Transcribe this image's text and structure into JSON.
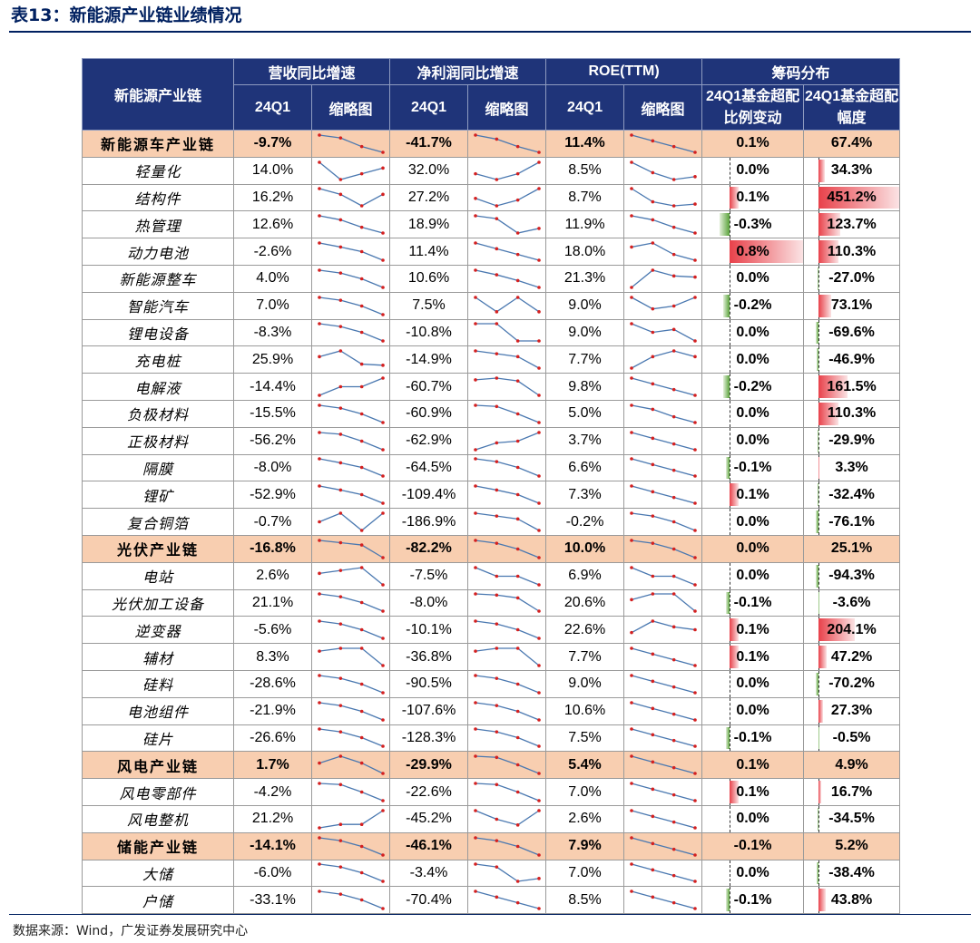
{
  "title": "表13：新能源产业链业绩情况",
  "source": "数据来源：Wind，广发证券发展研究中心",
  "colors": {
    "header_bg": "#1f3479",
    "group_bg": "#f8ceb0",
    "pos_bar": "#e8414a",
    "neg_bar": "#5aa23a",
    "spark_line": "#4a78b0",
    "spark_dot": "#d42020"
  },
  "header": {
    "col0": "新能源产业链",
    "group1": "营收同比增速",
    "group2": "净利润同比增速",
    "group3": "ROE(TTM)",
    "group4": "筹码分布",
    "q": "24Q1",
    "thumb": "缩略图",
    "chip1": "24Q1基金超配比例变动",
    "chip2": "24Q1基金超配幅度"
  },
  "rows": [
    {
      "name": "新能源车产业链",
      "group": true,
      "rev": "-9.7%",
      "np": "-41.7%",
      "roe": "11.4%",
      "chg": "0.1%",
      "over": "67.4%",
      "chgv": 0.1,
      "overv": 67.4,
      "s1": [
        3,
        2.5,
        1,
        0
      ],
      "s2": [
        3,
        2.3,
        1,
        0
      ],
      "s3": [
        3,
        2,
        1,
        0
      ]
    },
    {
      "name": "轻量化",
      "rev": "14.0%",
      "np": "32.0%",
      "roe": "8.5%",
      "chg": "0.0%",
      "over": "34.3%",
      "chgv": 0.0,
      "overv": 34.3,
      "s1": [
        3,
        0,
        1,
        2
      ],
      "s2": [
        1,
        0,
        1,
        3
      ],
      "s3": [
        3,
        1.2,
        0,
        0.5
      ]
    },
    {
      "name": "结构件",
      "rev": "16.2%",
      "np": "27.2%",
      "roe": "8.7%",
      "chg": "0.1%",
      "over": "451.2%",
      "chgv": 0.1,
      "overv": 451.2,
      "s1": [
        3,
        2,
        0,
        2
      ],
      "s2": [
        1.3,
        0,
        1,
        3
      ],
      "s3": [
        3,
        0.7,
        0,
        0.3
      ]
    },
    {
      "name": "热管理",
      "rev": "12.6%",
      "np": "18.9%",
      "roe": "11.9%",
      "chg": "-0.3%",
      "over": "123.7%",
      "chgv": -0.3,
      "overv": 123.7,
      "s1": [
        3,
        2.3,
        1,
        0
      ],
      "s2": [
        3,
        2.5,
        0,
        0.8
      ],
      "s3": [
        3,
        2.3,
        1,
        0
      ]
    },
    {
      "name": "动力电池",
      "rev": "-2.6%",
      "np": "11.4%",
      "roe": "18.0%",
      "chg": "0.8%",
      "over": "110.3%",
      "chgv": 0.8,
      "overv": 110.3,
      "s1": [
        3,
        2.3,
        1.5,
        0
      ],
      "s2": [
        3,
        2,
        1,
        0
      ],
      "s3": [
        2.3,
        3,
        1,
        0
      ]
    },
    {
      "name": "新能源整车",
      "rev": "4.0%",
      "np": "10.6%",
      "roe": "21.3%",
      "chg": "0.0%",
      "over": "-27.0%",
      "chgv": 0.0,
      "overv": -27.0,
      "s1": [
        3,
        2.5,
        1.5,
        0
      ],
      "s2": [
        3,
        2.2,
        1.2,
        0
      ],
      "s3": [
        0,
        3,
        2,
        1.8
      ]
    },
    {
      "name": "智能汽车",
      "rev": "7.0%",
      "np": "7.5%",
      "roe": "9.0%",
      "chg": "-0.2%",
      "over": "73.1%",
      "chgv": -0.2,
      "overv": 73.1,
      "s1": [
        3,
        2.5,
        1.5,
        0
      ],
      "s2": [
        3,
        0.5,
        3,
        0.5
      ],
      "s3": [
        3,
        1,
        1.5,
        3
      ]
    },
    {
      "name": "锂电设备",
      "rev": "-8.3%",
      "np": "-10.8%",
      "roe": "9.0%",
      "chg": "0.0%",
      "over": "-69.6%",
      "chgv": 0.0,
      "overv": -69.6,
      "s1": [
        3,
        2.5,
        1.5,
        0
      ],
      "s2": [
        3,
        3,
        0,
        0
      ],
      "s3": [
        3,
        1.5,
        2,
        0
      ]
    },
    {
      "name": "充电桩",
      "rev": "25.9%",
      "np": "-14.9%",
      "roe": "7.7%",
      "chg": "0.0%",
      "over": "-46.9%",
      "chgv": 0.0,
      "overv": -46.9,
      "s1": [
        2,
        3,
        0.7,
        0.5
      ],
      "s2": [
        3,
        2.5,
        2,
        0
      ],
      "s3": [
        0,
        2,
        3,
        2
      ]
    },
    {
      "name": "电解液",
      "rev": "-14.4%",
      "np": "-60.7%",
      "roe": "9.8%",
      "chg": "-0.2%",
      "over": "161.5%",
      "chgv": -0.2,
      "overv": 161.5,
      "s1": [
        0,
        1.5,
        1.5,
        3
      ],
      "s2": [
        2.7,
        3,
        2.5,
        0
      ],
      "s3": [
        3,
        2,
        1,
        0
      ]
    },
    {
      "name": "负极材料",
      "rev": "-15.5%",
      "np": "-60.9%",
      "roe": "5.0%",
      "chg": "0.0%",
      "over": "110.3%",
      "chgv": 0.0,
      "overv": 110.3,
      "s1": [
        3,
        2.5,
        1.5,
        0
      ],
      "s2": [
        3,
        2.8,
        1.5,
        0
      ],
      "s3": [
        3,
        2.3,
        1,
        0
      ]
    },
    {
      "name": "正极材料",
      "rev": "-56.2%",
      "np": "-62.9%",
      "roe": "3.7%",
      "chg": "0.0%",
      "over": "-29.9%",
      "chgv": 0.0,
      "overv": -29.9,
      "s1": [
        3,
        2.7,
        1.5,
        0
      ],
      "s2": [
        0,
        1.2,
        1.5,
        3
      ],
      "s3": [
        3,
        2,
        1,
        0
      ]
    },
    {
      "name": "隔膜",
      "rev": "-8.0%",
      "np": "-64.5%",
      "roe": "6.6%",
      "chg": "-0.1%",
      "over": "3.3%",
      "chgv": -0.1,
      "overv": 3.3,
      "s1": [
        3,
        2.3,
        1.5,
        0
      ],
      "s2": [
        3,
        2.5,
        1.5,
        0
      ],
      "s3": [
        3,
        2,
        1,
        0
      ]
    },
    {
      "name": "锂矿",
      "rev": "-52.9%",
      "np": "-109.4%",
      "roe": "7.3%",
      "chg": "0.1%",
      "over": "-32.4%",
      "chgv": 0.1,
      "overv": -32.4,
      "s1": [
        3,
        2.3,
        1.5,
        0
      ],
      "s2": [
        3,
        2.3,
        1.5,
        0
      ],
      "s3": [
        3,
        2,
        1,
        0
      ]
    },
    {
      "name": "复合铜箔",
      "rev": "-0.7%",
      "np": "-186.9%",
      "roe": "-0.2%",
      "chg": "0.0%",
      "over": "-76.1%",
      "chgv": 0.0,
      "overv": -76.1,
      "s1": [
        1.5,
        3,
        0,
        3
      ],
      "s2": [
        3,
        2.5,
        2,
        0
      ],
      "s3": [
        3,
        2.5,
        1.5,
        0
      ]
    },
    {
      "name": "光伏产业链",
      "group": true,
      "rev": "-16.8%",
      "np": "-82.2%",
      "roe": "10.0%",
      "chg": "0.0%",
      "over": "25.1%",
      "chgv": 0.0,
      "overv": 25.1,
      "s1": [
        3,
        2.6,
        2.2,
        0
      ],
      "s2": [
        3,
        2.5,
        1.5,
        0
      ],
      "s3": [
        3,
        2.5,
        1.5,
        0
      ]
    },
    {
      "name": "电站",
      "rev": "2.6%",
      "np": "-7.5%",
      "roe": "6.9%",
      "chg": "0.0%",
      "over": "-94.3%",
      "chgv": 0.0,
      "overv": -94.3,
      "s1": [
        2,
        2.5,
        3,
        0
      ],
      "s2": [
        3,
        1.5,
        1.5,
        0
      ],
      "s3": [
        3,
        1.5,
        1.5,
        0
      ]
    },
    {
      "name": "光伏加工设备",
      "rev": "21.1%",
      "np": "-8.0%",
      "roe": "20.6%",
      "chg": "-0.1%",
      "over": "-3.6%",
      "chgv": -0.1,
      "overv": -3.6,
      "s1": [
        3,
        2.5,
        1.5,
        0
      ],
      "s2": [
        3,
        2.8,
        2.3,
        0
      ],
      "s3": [
        2,
        3,
        3,
        0
      ]
    },
    {
      "name": "逆变器",
      "rev": "-5.6%",
      "np": "-10.1%",
      "roe": "22.6%",
      "chg": "0.1%",
      "over": "204.1%",
      "chgv": 0.1,
      "overv": 204.1,
      "s1": [
        3,
        2.5,
        1.5,
        0
      ],
      "s2": [
        3,
        2.5,
        1.5,
        0
      ],
      "s3": [
        1,
        3,
        2,
        1.5
      ]
    },
    {
      "name": "辅材",
      "rev": "8.3%",
      "np": "-36.8%",
      "roe": "7.7%",
      "chg": "0.1%",
      "over": "47.2%",
      "chgv": 0.1,
      "overv": 47.2,
      "s1": [
        2.5,
        3,
        3,
        0
      ],
      "s2": [
        2.5,
        3,
        3,
        0
      ],
      "s3": [
        3,
        2,
        1,
        0
      ]
    },
    {
      "name": "硅料",
      "rev": "-28.6%",
      "np": "-90.5%",
      "roe": "9.0%",
      "chg": "0.0%",
      "over": "-70.2%",
      "chgv": 0.0,
      "overv": -70.2,
      "s1": [
        3,
        2.5,
        1.5,
        0
      ],
      "s2": [
        3,
        2.5,
        1.5,
        0
      ],
      "s3": [
        3,
        2,
        1,
        0
      ]
    },
    {
      "name": "电池组件",
      "rev": "-21.9%",
      "np": "-107.6%",
      "roe": "10.6%",
      "chg": "0.0%",
      "over": "27.3%",
      "chgv": 0.0,
      "overv": 27.3,
      "s1": [
        3,
        2.5,
        1.5,
        0
      ],
      "s2": [
        3,
        2.5,
        1.5,
        0
      ],
      "s3": [
        3,
        2,
        1,
        0
      ]
    },
    {
      "name": "硅片",
      "rev": "-26.6%",
      "np": "-128.3%",
      "roe": "7.5%",
      "chg": "-0.1%",
      "over": "-0.5%",
      "chgv": -0.1,
      "overv": -0.5,
      "s1": [
        3,
        2.5,
        1.5,
        0
      ],
      "s2": [
        3,
        2.5,
        1.5,
        0
      ],
      "s3": [
        3,
        2,
        1,
        0
      ]
    },
    {
      "name": "风电产业链",
      "group": true,
      "rev": "1.7%",
      "np": "-29.9%",
      "roe": "5.4%",
      "chg": "0.1%",
      "over": "4.9%",
      "chgv": 0.1,
      "overv": 4.9,
      "s1": [
        1.8,
        3,
        1.8,
        0
      ],
      "s2": [
        3,
        2.8,
        1.5,
        0
      ],
      "s3": [
        3,
        2,
        1,
        0
      ]
    },
    {
      "name": "风电零部件",
      "rev": "-4.2%",
      "np": "-22.6%",
      "roe": "7.0%",
      "chg": "0.1%",
      "over": "16.7%",
      "chgv": 0.1,
      "overv": 16.7,
      "s1": [
        3,
        2.8,
        1.5,
        0
      ],
      "s2": [
        3,
        2.8,
        1.5,
        0
      ],
      "s3": [
        3,
        2,
        1,
        0
      ]
    },
    {
      "name": "风电整机",
      "rev": "21.2%",
      "np": "-45.2%",
      "roe": "2.6%",
      "chg": "0.0%",
      "over": "-34.5%",
      "chgv": 0.0,
      "overv": -34.5,
      "s1": [
        0,
        0.6,
        0.6,
        3
      ],
      "s2": [
        3,
        1.5,
        0.5,
        3
      ],
      "s3": [
        3,
        2,
        1,
        0
      ]
    },
    {
      "name": "储能产业链",
      "group": true,
      "rev": "-14.1%",
      "np": "-46.1%",
      "roe": "7.9%",
      "chg": "-0.1%",
      "over": "5.2%",
      "chgv": -0.1,
      "overv": 5.2,
      "s1": [
        3,
        2.5,
        1.5,
        0
      ],
      "s2": [
        3,
        2.5,
        1.5,
        0
      ],
      "s3": [
        3,
        2,
        1,
        0
      ]
    },
    {
      "name": "大储",
      "rev": "-6.0%",
      "np": "-3.4%",
      "roe": "7.0%",
      "chg": "0.0%",
      "over": "-38.4%",
      "chgv": 0.0,
      "overv": -38.4,
      "s1": [
        3,
        2.5,
        1.5,
        0
      ],
      "s2": [
        3,
        2.5,
        0,
        0.5
      ],
      "s3": [
        3,
        2,
        1,
        0
      ]
    },
    {
      "name": "户储",
      "rev": "-33.1%",
      "np": "-70.4%",
      "roe": "8.5%",
      "chg": "-0.1%",
      "over": "43.8%",
      "chgv": -0.1,
      "overv": 43.8,
      "s1": [
        3,
        2.5,
        1.5,
        0
      ],
      "s2": [
        3,
        2,
        1,
        0
      ],
      "s3": [
        3,
        2,
        1,
        0
      ]
    }
  ]
}
